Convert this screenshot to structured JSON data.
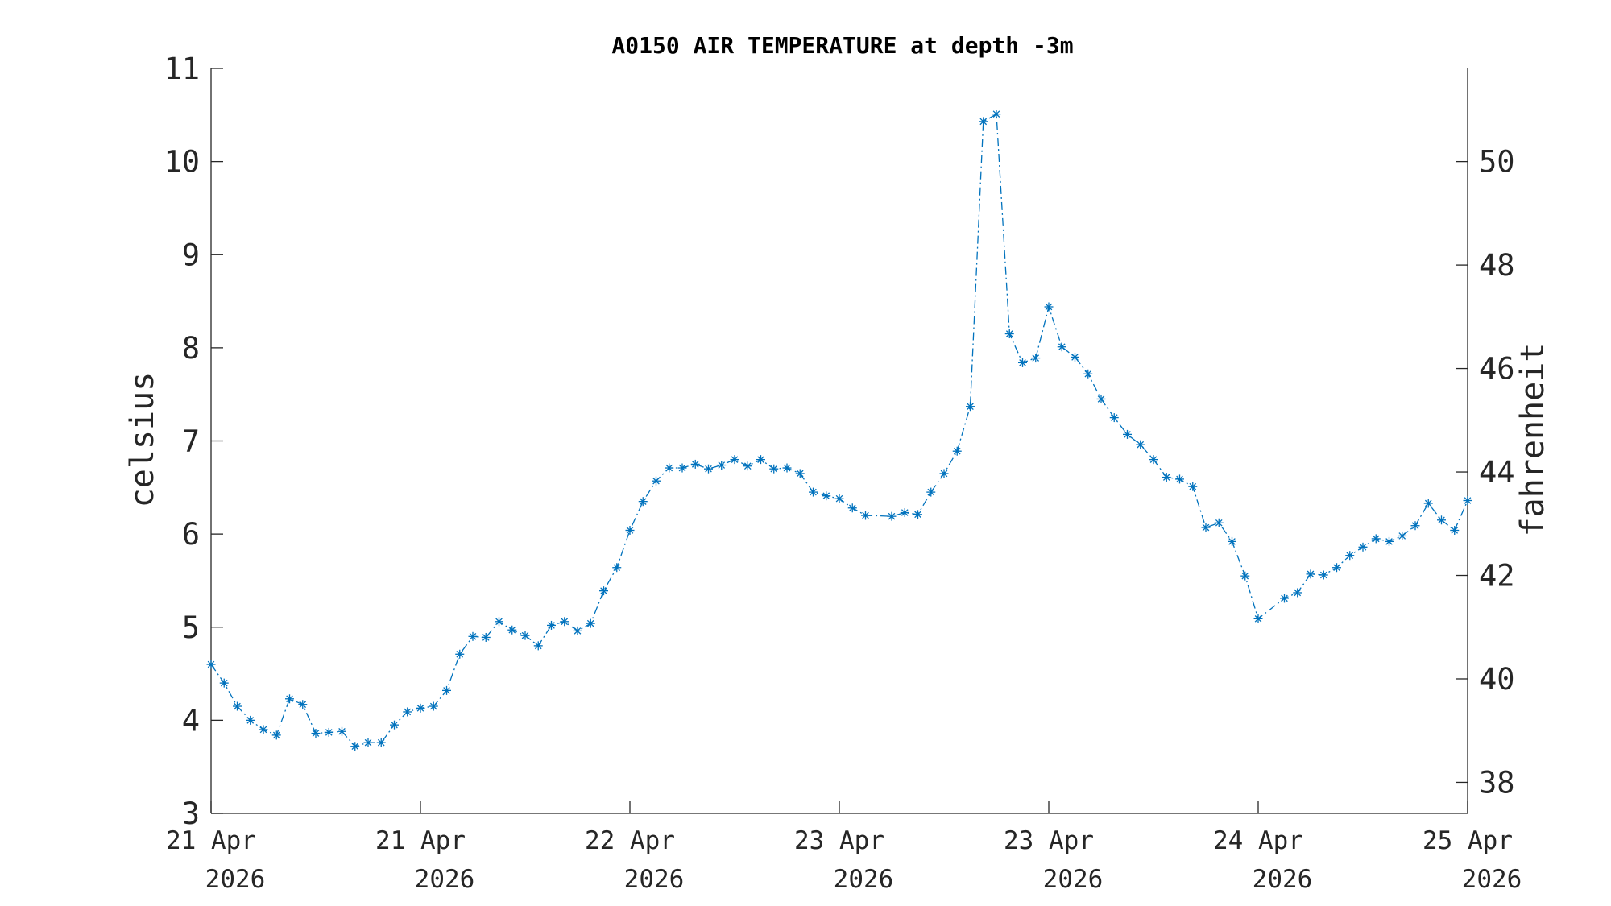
{
  "chart_data": {
    "type": "line",
    "title": "A0150 AIR TEMPERATURE at depth -3m",
    "ylabel": "celsius",
    "ylabel_right": "fahrenheit",
    "xlabel": "",
    "ylim": [
      3,
      11
    ],
    "yticks": [
      "3",
      "4",
      "5",
      "6",
      "7",
      "8",
      "9",
      "10",
      "11"
    ],
    "ylim_right": [
      37.4,
      51.8
    ],
    "yticks_right": [
      "38",
      "40",
      "42",
      "44",
      "46",
      "48",
      "50"
    ],
    "xlim_hours": [
      0,
      96
    ],
    "xticks": [
      {
        "hour": 0,
        "line1": "21 Apr",
        "line2": "2026"
      },
      {
        "hour": 16,
        "line1": "21 Apr",
        "line2": "2026"
      },
      {
        "hour": 32,
        "line1": "22 Apr",
        "line2": "2026"
      },
      {
        "hour": 48,
        "line1": "23 Apr",
        "line2": "2026"
      },
      {
        "hour": 64,
        "line1": "23 Apr",
        "line2": "2026"
      },
      {
        "hour": 80,
        "line1": "24 Apr",
        "line2": "2026"
      },
      {
        "hour": 96,
        "line1": "25 Apr",
        "line2": "2026"
      }
    ],
    "grid": false,
    "legend": "none",
    "marker": "asterisk",
    "line_style": "dash-dot",
    "color": "#0072bd",
    "series": [
      {
        "x": [
          0,
          1,
          2,
          3,
          4,
          5,
          6,
          7,
          8,
          9,
          10,
          11,
          12,
          13,
          14,
          15,
          16,
          17,
          18,
          19,
          20,
          21,
          22,
          23,
          24,
          25,
          26,
          27,
          28,
          29,
          30,
          31,
          32,
          33,
          34,
          35,
          36,
          37,
          38,
          39,
          40,
          41,
          42,
          43,
          44,
          45,
          46,
          47,
          48,
          49,
          50,
          52,
          53,
          54,
          55,
          56,
          57,
          58,
          59,
          60,
          61,
          62,
          63,
          64,
          65,
          66,
          67,
          68,
          69,
          70,
          71,
          72,
          73,
          74,
          75,
          76,
          77,
          78,
          79,
          80,
          82,
          83,
          84,
          85,
          86,
          87,
          88,
          89,
          90,
          91,
          92,
          93,
          94,
          95,
          96
        ],
        "y": [
          4.6,
          4.4,
          4.15,
          4.0,
          3.9,
          3.84,
          4.23,
          4.17,
          3.86,
          3.87,
          3.88,
          3.72,
          3.76,
          3.76,
          3.95,
          4.09,
          4.13,
          4.15,
          4.32,
          4.71,
          4.9,
          4.89,
          5.06,
          4.97,
          4.91,
          4.8,
          5.02,
          5.06,
          4.96,
          5.04,
          5.39,
          5.64,
          6.04,
          6.35,
          6.57,
          6.71,
          6.71,
          6.75,
          6.7,
          6.74,
          6.8,
          6.73,
          6.8,
          6.7,
          6.71,
          6.65,
          6.45,
          6.41,
          6.38,
          6.28,
          6.2,
          6.19,
          6.23,
          6.21,
          6.45,
          6.65,
          6.89,
          7.37,
          10.43,
          10.51,
          8.15,
          7.84,
          7.89,
          8.44,
          8.01,
          7.9,
          7.72,
          7.45,
          7.25,
          7.07,
          6.96,
          6.8,
          6.61,
          6.59,
          6.51,
          6.07,
          6.12,
          5.92,
          5.55,
          5.09,
          5.31,
          5.37,
          5.57,
          5.56,
          5.64,
          5.77,
          5.86,
          5.95,
          5.92,
          5.98,
          6.09,
          6.33,
          6.15,
          6.04,
          6.36
        ]
      }
    ]
  }
}
